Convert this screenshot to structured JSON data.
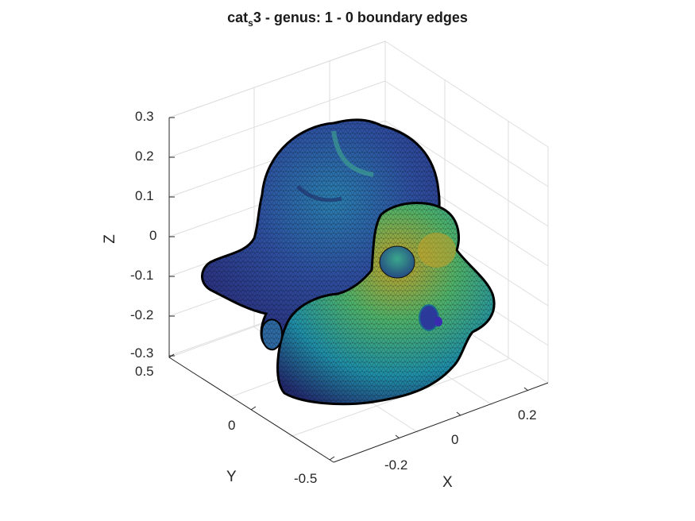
{
  "chart_data": {
    "type": "surface-3d",
    "title": {
      "prefix": "cat",
      "subscript": "s",
      "suffix": "3 - genus: 1 - 0 boundary edges"
    },
    "xlabel": "X",
    "ylabel": "Y",
    "zlabel": "Z",
    "x_ticks": [
      "-0.2",
      "0",
      "0.2"
    ],
    "y_ticks": [
      "-0.5",
      "0",
      "0.5"
    ],
    "z_ticks": [
      "0.3",
      "0.2",
      "0.1",
      "0",
      "-0.1",
      "-0.2",
      "-0.3"
    ],
    "grid": true,
    "colormap": "parula",
    "colors": {
      "dark": "#2b2a7a",
      "mid": "#1f8fa8",
      "light": "#2bb07f",
      "high": "#c9a227"
    }
  }
}
